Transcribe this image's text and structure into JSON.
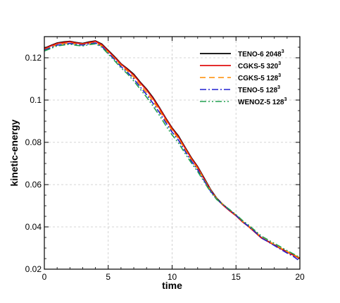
{
  "chart_data": {
    "type": "line",
    "xlabel": "time",
    "ylabel": "kinetic-energy",
    "xlim": [
      0,
      20
    ],
    "ylim": [
      0.02,
      0.13
    ],
    "xticks": [
      "0",
      "5",
      "10",
      "15",
      "20"
    ],
    "yticks": [
      "0.02",
      "0.04",
      "0.06",
      "0.08",
      "0.1",
      "0.12"
    ],
    "grid": true,
    "legend_position": "top-right",
    "series": [
      {
        "name": "TENO-6 2048",
        "superscript": "3",
        "color": "#000000",
        "dash": "solid",
        "x": [
          0,
          0.5,
          1,
          1.5,
          2,
          2.5,
          3,
          3.5,
          4,
          4.5,
          5,
          5.5,
          6,
          6.5,
          7,
          7.5,
          8,
          8.5,
          9,
          9.5,
          10,
          10.5,
          11,
          11.5,
          12,
          12.5,
          13,
          13.5,
          14,
          14.5,
          15,
          15.5,
          16,
          16.5,
          17,
          17.5,
          18,
          18.5,
          19,
          19.5,
          20
        ],
        "values": [
          0.1245,
          0.1258,
          0.127,
          0.1275,
          0.1278,
          0.1272,
          0.1268,
          0.1275,
          0.128,
          0.1265,
          0.1235,
          0.1205,
          0.1172,
          0.1148,
          0.1122,
          0.1085,
          0.1052,
          0.1012,
          0.0965,
          0.0915,
          0.0868,
          0.083,
          0.0778,
          0.0728,
          0.0685,
          0.0632,
          0.0578,
          0.0535,
          0.0505,
          0.0478,
          0.0455,
          0.0425,
          0.0402,
          0.0375,
          0.0348,
          0.0332,
          0.0315,
          0.0298,
          0.0282,
          0.0268,
          0.0252
        ]
      },
      {
        "name": "CGKS-5 320",
        "superscript": "3",
        "color": "#e01010",
        "dash": "solid",
        "x": [
          0,
          0.5,
          1,
          1.5,
          2,
          2.5,
          3,
          3.5,
          4,
          4.5,
          5,
          5.5,
          6,
          6.5,
          7,
          7.5,
          8,
          8.5,
          9,
          9.5,
          10,
          10.5,
          11,
          11.5,
          12,
          12.5,
          13,
          13.5,
          14,
          14.5,
          15,
          15.5,
          16,
          16.5,
          17,
          17.5,
          18,
          18.5,
          19,
          19.5,
          20
        ],
        "values": [
          0.1243,
          0.1256,
          0.1268,
          0.1272,
          0.1276,
          0.127,
          0.1266,
          0.1272,
          0.1278,
          0.1262,
          0.1232,
          0.1202,
          0.117,
          0.1145,
          0.1118,
          0.1082,
          0.1048,
          0.1008,
          0.0962,
          0.0912,
          0.0865,
          0.0826,
          0.0775,
          0.0725,
          0.0682,
          0.0628,
          0.0575,
          0.0532,
          0.0502,
          0.0476,
          0.0453,
          0.0424,
          0.0401,
          0.0374,
          0.0347,
          0.0331,
          0.0314,
          0.0297,
          0.0281,
          0.0266,
          0.025
        ]
      },
      {
        "name": "CGKS-5 128",
        "superscript": "3",
        "color": "#ff8c00",
        "dash": "dashed",
        "x": [
          0,
          0.5,
          1,
          1.5,
          2,
          2.5,
          3,
          3.5,
          4,
          4.5,
          5,
          5.5,
          6,
          6.5,
          7,
          7.5,
          8,
          8.5,
          9,
          9.5,
          10,
          10.5,
          11,
          11.5,
          12,
          12.5,
          13,
          13.5,
          14,
          14.5,
          15,
          15.5,
          16,
          16.5,
          17,
          17.5,
          18,
          18.5,
          19,
          19.5,
          20
        ],
        "values": [
          0.1238,
          0.125,
          0.1262,
          0.1266,
          0.127,
          0.1265,
          0.1262,
          0.1268,
          0.1272,
          0.1256,
          0.1226,
          0.1196,
          0.1164,
          0.1138,
          0.1108,
          0.1072,
          0.1036,
          0.0996,
          0.0952,
          0.0903,
          0.0857,
          0.0818,
          0.0768,
          0.0718,
          0.0676,
          0.0625,
          0.0574,
          0.0533,
          0.0506,
          0.0481,
          0.0456,
          0.0427,
          0.0404,
          0.0378,
          0.0351,
          0.0334,
          0.0317,
          0.03,
          0.0284,
          0.0269,
          0.0253
        ]
      },
      {
        "name": "TENO-5 128",
        "superscript": "3",
        "color": "#2020d0",
        "dash": "dashdot",
        "x": [
          0,
          0.5,
          1,
          1.5,
          2,
          2.5,
          3,
          3.5,
          4,
          4.5,
          5,
          5.5,
          6,
          6.5,
          7,
          7.5,
          8,
          8.5,
          9,
          9.5,
          10,
          10.5,
          11,
          11.5,
          12,
          12.5,
          13,
          13.5,
          14,
          14.5,
          15,
          15.5,
          16,
          16.5,
          17,
          17.5,
          18,
          18.5,
          19,
          19.5,
          20
        ],
        "values": [
          0.1236,
          0.1248,
          0.126,
          0.1264,
          0.1268,
          0.1263,
          0.126,
          0.1266,
          0.127,
          0.1254,
          0.1222,
          0.1192,
          0.1158,
          0.1132,
          0.11,
          0.1062,
          0.1026,
          0.0985,
          0.0942,
          0.0894,
          0.0848,
          0.081,
          0.076,
          0.0712,
          0.067,
          0.062,
          0.057,
          0.0531,
          0.0504,
          0.0479,
          0.0455,
          0.0426,
          0.0402,
          0.0376,
          0.0348,
          0.033,
          0.0312,
          0.0294,
          0.0276,
          0.026,
          0.0238
        ]
      },
      {
        "name": "WENOZ-5 128",
        "superscript": "3",
        "color": "#22a050",
        "dash": "dashdotdot",
        "x": [
          0,
          0.5,
          1,
          1.5,
          2,
          2.5,
          3,
          3.5,
          4,
          4.5,
          5,
          5.5,
          6,
          6.5,
          7,
          7.5,
          8,
          8.5,
          9,
          9.5,
          10,
          10.5,
          11,
          11.5,
          12,
          12.5,
          13,
          13.5,
          14,
          14.5,
          15,
          15.5,
          16,
          16.5,
          17,
          17.5,
          18,
          18.5,
          19,
          19.5,
          20
        ],
        "values": [
          0.1232,
          0.1244,
          0.1256,
          0.126,
          0.1264,
          0.1259,
          0.1256,
          0.1262,
          0.1266,
          0.125,
          0.1218,
          0.1186,
          0.1152,
          0.1124,
          0.109,
          0.1052,
          0.1014,
          0.0972,
          0.0928,
          0.088,
          0.0835,
          0.0797,
          0.0749,
          0.0703,
          0.0662,
          0.0614,
          0.0566,
          0.0529,
          0.0505,
          0.0482,
          0.0458,
          0.0431,
          0.0408,
          0.0382,
          0.0356,
          0.0339,
          0.0322,
          0.0305,
          0.0288,
          0.0272,
          0.0255
        ]
      }
    ]
  }
}
